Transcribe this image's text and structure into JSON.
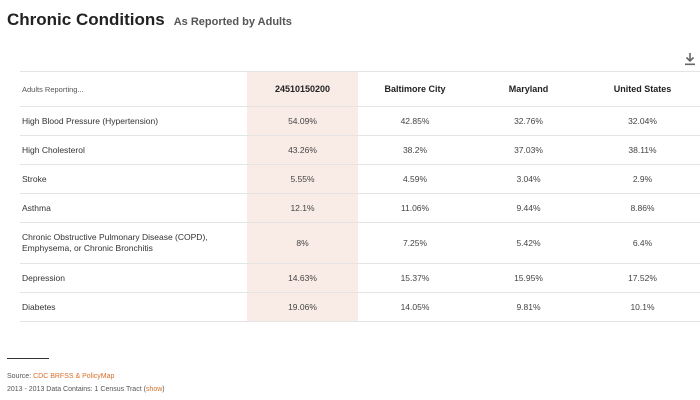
{
  "header": {
    "title": "Chronic Conditions",
    "subtitle": "As Reported by Adults"
  },
  "icons": {
    "download": "download-icon"
  },
  "colors": {
    "highlight_column": "#f9ece6",
    "link": "#d8702a"
  },
  "table": {
    "row_header": "Adults Reporting...",
    "columns": [
      "24510150200",
      "Baltimore City",
      "Maryland",
      "United States"
    ],
    "rows": [
      {
        "label": "High Blood Pressure (Hypertension)",
        "values": [
          "54.09%",
          "42.85%",
          "32.76%",
          "32.04%"
        ]
      },
      {
        "label": "High Cholesterol",
        "values": [
          "43.26%",
          "38.2%",
          "37.03%",
          "38.11%"
        ]
      },
      {
        "label": "Stroke",
        "values": [
          "5.55%",
          "4.59%",
          "3.04%",
          "2.9%"
        ]
      },
      {
        "label": "Asthma",
        "values": [
          "12.1%",
          "11.06%",
          "9.44%",
          "8.86%"
        ]
      },
      {
        "label_lines": [
          "Chronic Obstructive Pulmonary Disease (COPD),",
          "Emphysema, or Chronic Bronchitis"
        ],
        "values": [
          "8%",
          "7.25%",
          "5.42%",
          "6.4%"
        ]
      },
      {
        "label": "Depression",
        "values": [
          "14.63%",
          "15.37%",
          "15.95%",
          "17.52%"
        ]
      },
      {
        "label": "Diabetes",
        "values": [
          "19.06%",
          "14.05%",
          "9.81%",
          "10.1%"
        ]
      }
    ]
  },
  "footer": {
    "source_label": "Source:",
    "source_link": "CDC BRFSS & PolicyMap",
    "data_note": "2013 - 2013 Data Contains: 1 Census Tract (",
    "show_link": "show",
    "data_note_end": ")"
  }
}
